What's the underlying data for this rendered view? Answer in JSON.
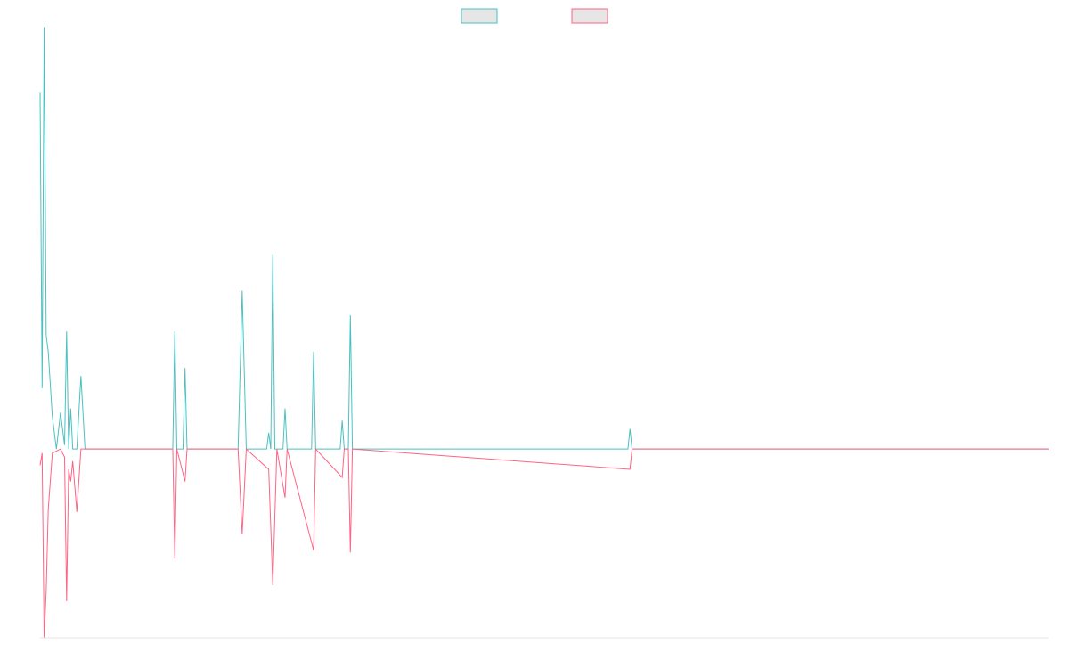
{
  "chart_data": {
    "type": "line",
    "x_range": [
      0,
      247
    ],
    "ylim": [
      -46.5,
      103
    ],
    "grid": false,
    "legend": "top-center",
    "series": [
      {
        "color": "#4bc0c0",
        "fill": "#e6e6e6",
        "points": [
          [
            0,
            88
          ],
          [
            0.5,
            15
          ],
          [
            1,
            104
          ],
          [
            1.5,
            28
          ],
          [
            2,
            24
          ],
          [
            3,
            8
          ],
          [
            4,
            0
          ],
          [
            5,
            9
          ],
          [
            6,
            1
          ],
          [
            6.5,
            29
          ],
          [
            7,
            0
          ],
          [
            7.5,
            10
          ],
          [
            8,
            0
          ],
          [
            9,
            0
          ],
          [
            10,
            18
          ],
          [
            11,
            0
          ],
          [
            12,
            0
          ],
          [
            30,
            0
          ],
          [
            32.5,
            0
          ],
          [
            33,
            29
          ],
          [
            33.5,
            0
          ],
          [
            35,
            0
          ],
          [
            35.5,
            20
          ],
          [
            36,
            0
          ],
          [
            48,
            0
          ],
          [
            48.5,
            0
          ],
          [
            49.5,
            39
          ],
          [
            50.5,
            0
          ],
          [
            55.5,
            0
          ],
          [
            56,
            4
          ],
          [
            56.5,
            0
          ],
          [
            57,
            48
          ],
          [
            57.5,
            0
          ],
          [
            59.5,
            0
          ],
          [
            60,
            10
          ],
          [
            60.5,
            0
          ],
          [
            66.5,
            0
          ],
          [
            67,
            24
          ],
          [
            67.5,
            0
          ],
          [
            73.5,
            0
          ],
          [
            74,
            7
          ],
          [
            74.5,
            0
          ],
          [
            75.5,
            0
          ],
          [
            76,
            33
          ],
          [
            76.5,
            0
          ],
          [
            144,
            0
          ],
          [
            144.5,
            5
          ],
          [
            145,
            0
          ],
          [
            247,
            0
          ]
        ]
      },
      {
        "color": "#ff6384",
        "fill": "#e6e6e6",
        "points": [
          [
            0,
            -4
          ],
          [
            0.5,
            -1
          ],
          [
            1,
            -46.5
          ],
          [
            1.5,
            -35
          ],
          [
            2,
            -15
          ],
          [
            3,
            -1
          ],
          [
            5,
            0
          ],
          [
            6,
            -2
          ],
          [
            6.5,
            -37.5
          ],
          [
            7,
            -5
          ],
          [
            7.5,
            -8
          ],
          [
            8,
            -3
          ],
          [
            9,
            -15.5
          ],
          [
            10,
            0
          ],
          [
            12,
            0
          ],
          [
            32.5,
            0
          ],
          [
            33,
            -27
          ],
          [
            33.5,
            0
          ],
          [
            35.5,
            -8
          ],
          [
            36,
            0
          ],
          [
            48.5,
            0
          ],
          [
            49.5,
            -21
          ],
          [
            50.5,
            0
          ],
          [
            56,
            -5
          ],
          [
            57,
            -33.5
          ],
          [
            58,
            0
          ],
          [
            60,
            -12
          ],
          [
            60.5,
            0
          ],
          [
            67,
            -25
          ],
          [
            67.5,
            0
          ],
          [
            74,
            -7
          ],
          [
            74.5,
            0
          ],
          [
            75.5,
            0
          ],
          [
            76,
            -25.5
          ],
          [
            76.5,
            0
          ],
          [
            144.5,
            -5
          ],
          [
            145,
            0
          ],
          [
            247,
            0
          ]
        ]
      }
    ]
  }
}
